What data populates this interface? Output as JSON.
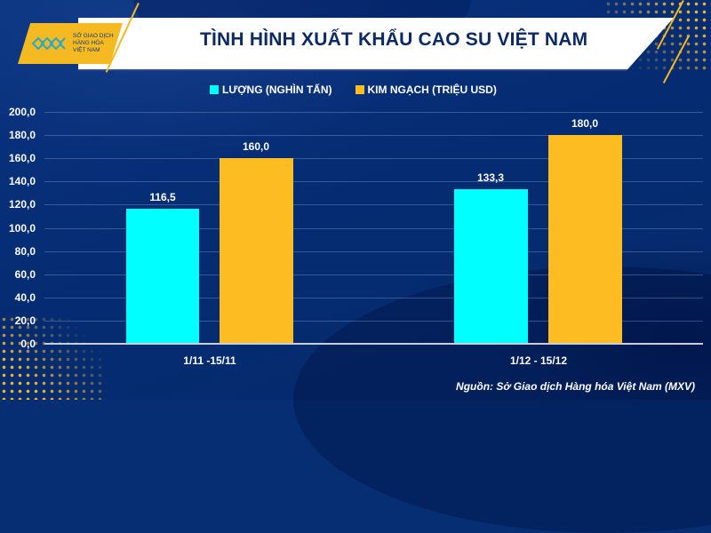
{
  "header": {
    "title": "TÌNH HÌNH XUẤT KHẨU CAO SU VIỆT NAM",
    "logo": {
      "icon": "mxv-logo-icon",
      "lines": [
        "SỞ GIAO DỊCH",
        "HÀNG HÓA",
        "VIỆT NAM"
      ]
    }
  },
  "legend": [
    {
      "label": "LƯỢNG (NGHÌN TẤN)",
      "color": "#00ffff"
    },
    {
      "label": "KIM NGẠCH (TRIỆU USD)",
      "color": "#fcbc22"
    }
  ],
  "yaxis": {
    "ticks": [
      "200,0",
      "180,0",
      "160,0",
      "140,0",
      "120,0",
      "100,0",
      "80,0",
      "60,0",
      "40,0",
      "20,0",
      "0,0"
    ]
  },
  "source": "Nguồn: Sở Giao dịch Hàng hóa Việt Nam (MXV)",
  "chart_data": {
    "type": "bar",
    "title": "TÌNH HÌNH XUẤT KHẨU CAO SU VIỆT NAM",
    "categories": [
      "1/11 -15/11",
      "1/12 - 15/12"
    ],
    "series": [
      {
        "name": "LƯỢNG (NGHÌN TẤN)",
        "color": "#00ffff",
        "values": [
          116.5,
          133.3
        ],
        "labels": [
          "116,5",
          "133,3"
        ]
      },
      {
        "name": "KIM NGẠCH (TRIỆU USD)",
        "color": "#fcbc22",
        "values": [
          160.0,
          180.0
        ],
        "labels": [
          "160,0",
          "180,0"
        ]
      }
    ],
    "xlabel": "",
    "ylabel": "",
    "ylim": [
      0,
      200
    ],
    "ytick_step": 20,
    "grid": true,
    "legend_position": "top"
  }
}
